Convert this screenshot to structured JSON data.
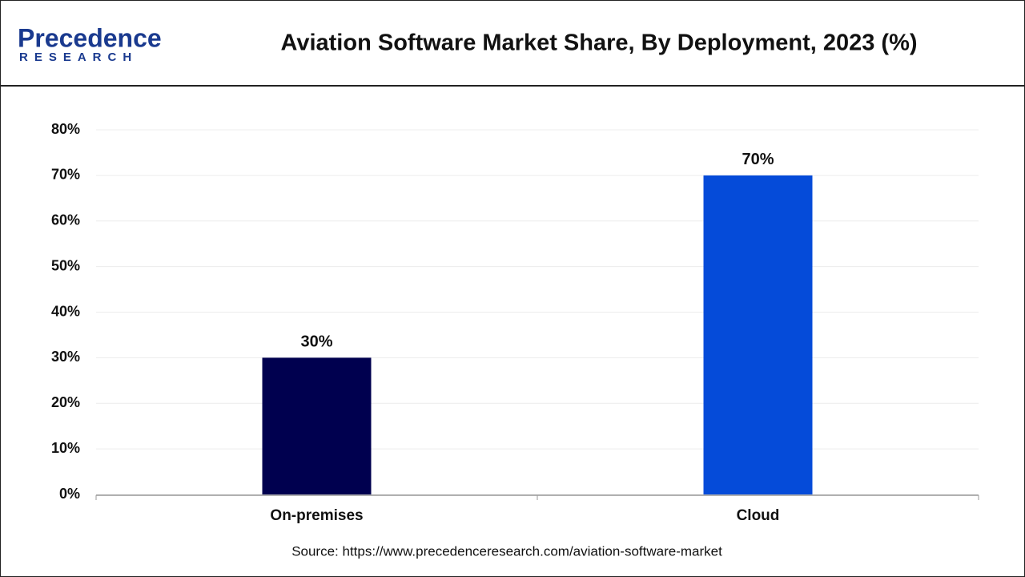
{
  "logo": {
    "name": "Precedence",
    "sub": "RESEARCH"
  },
  "chart_data": {
    "type": "bar",
    "title": "Aviation Software Market Share, By Deployment, 2023 (%)",
    "categories": [
      "On-premises",
      "Cloud"
    ],
    "values": [
      30,
      70
    ],
    "value_labels": [
      "30%",
      "70%"
    ],
    "colors": [
      "#00004f",
      "#054bd9"
    ],
    "ylim": [
      0,
      80
    ],
    "yticks": [
      {
        "value": 0,
        "label": "0%"
      },
      {
        "value": 10,
        "label": "10%"
      },
      {
        "value": 20,
        "label": "20%"
      },
      {
        "value": 30,
        "label": "30%"
      },
      {
        "value": 40,
        "label": "40%"
      },
      {
        "value": 50,
        "label": "50%"
      },
      {
        "value": 60,
        "label": "60%"
      },
      {
        "value": 70,
        "label": "70%"
      },
      {
        "value": 80,
        "label": "80%"
      }
    ],
    "grid": true,
    "source": "Source: https://www.precedenceresearch.com/aviation-software-market"
  }
}
